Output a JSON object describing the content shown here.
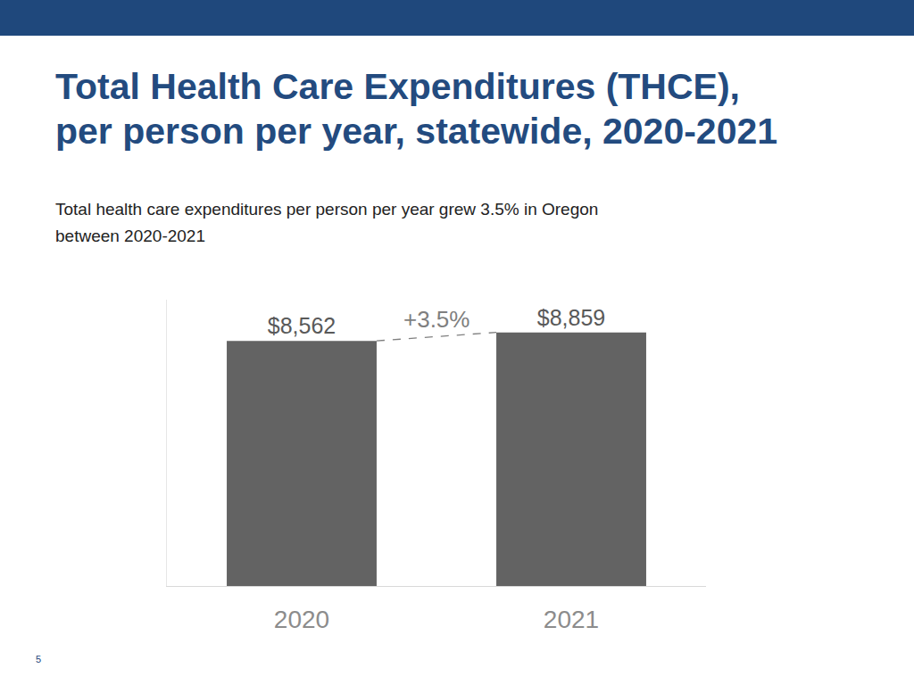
{
  "chart_data": {
    "type": "bar",
    "title": "Total Health Care Expenditures (THCE),\nper person per year, statewide, 2020-2021",
    "subtitle": "Total health care expenditures per person per year grew 3.5% in Oregon\nbetween 2020-2021",
    "categories": [
      "2020",
      "2021"
    ],
    "values": [
      8562,
      8859
    ],
    "value_labels": [
      "$8,562",
      "$8,859"
    ],
    "color": "#636363",
    "data_labels": true,
    "tick_labels": "x",
    "grid": false,
    "ylim": [
      0,
      10000
    ],
    "annotations": [
      {
        "text": "+3.5%"
      }
    ]
  },
  "slide": {
    "page_number": "5"
  }
}
